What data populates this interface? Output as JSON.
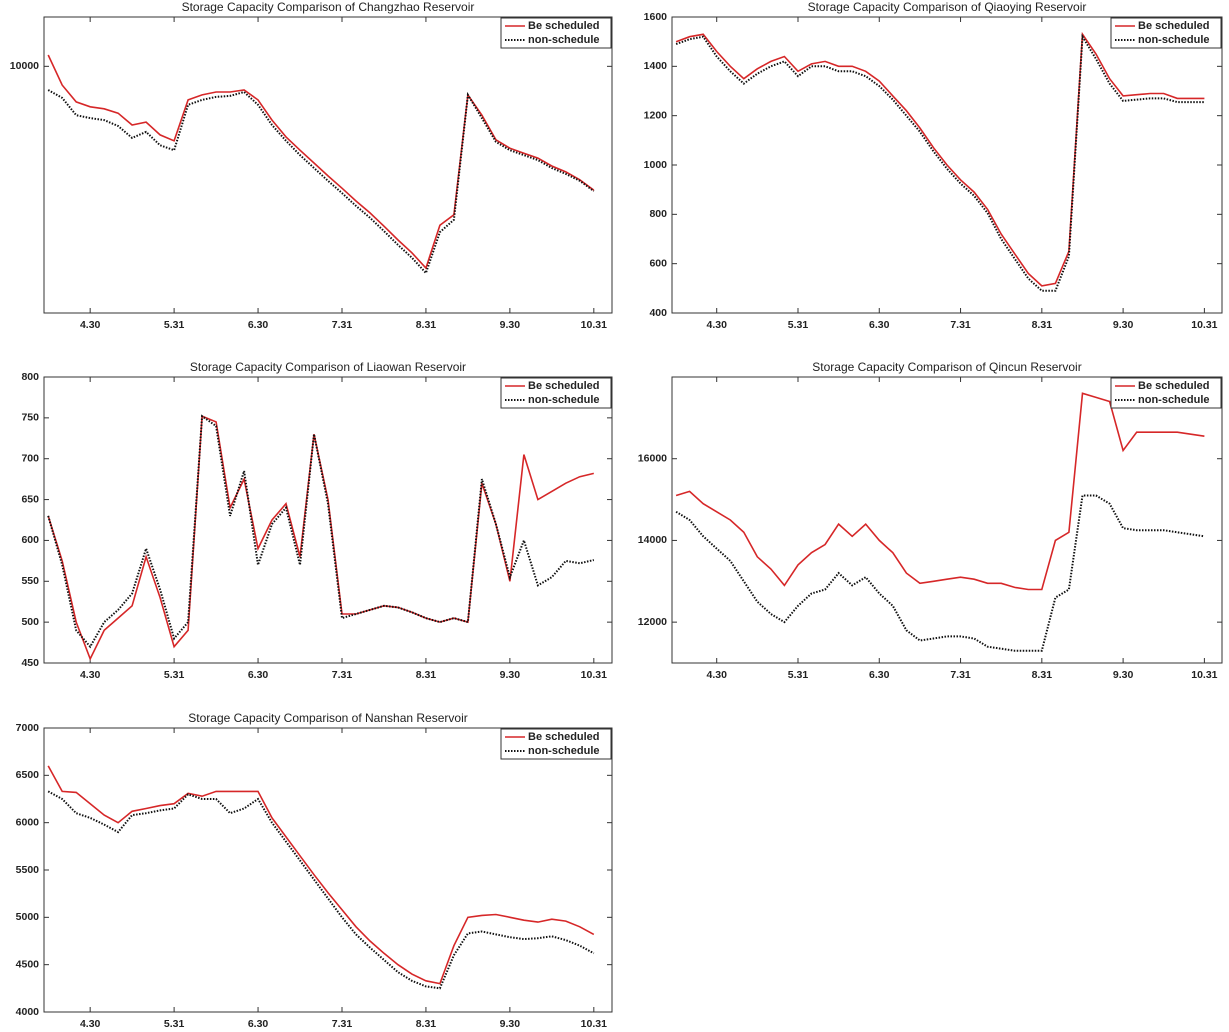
{
  "chart_data": [
    {
      "type": "line",
      "title": "Storage Capacity Comparison of Changzhao Reservoir",
      "categories": [
        null,
        null,
        null,
        "4.30",
        null,
        null,
        null,
        null,
        null,
        "5.31",
        null,
        null,
        null,
        null,
        null,
        "6.30",
        null,
        null,
        null,
        null,
        null,
        "7.31",
        null,
        null,
        null,
        null,
        null,
        "8.31",
        null,
        null,
        null,
        null,
        null,
        "9.30",
        null,
        null,
        null,
        null,
        null,
        "10.31"
      ],
      "ylim": [
        5000,
        11000
      ],
      "yticks": [
        10000
      ],
      "legend": "upper right",
      "series": [
        {
          "name": "Be scheduled",
          "color": "#d62728",
          "style": "solid",
          "values": [
            10230,
            9620,
            9280,
            9180,
            9140,
            9050,
            8810,
            8870,
            8610,
            8490,
            9320,
            9420,
            9480,
            9480,
            9520,
            9320,
            8910,
            8570,
            8300,
            8040,
            7780,
            7530,
            7270,
            7030,
            6760,
            6480,
            6220,
            5910,
            6780,
            6990,
            9420,
            9010,
            8510,
            8340,
            8240,
            8140,
            7980,
            7860,
            7700,
            7490
          ]
        },
        {
          "name": "non-schedule",
          "color": "#111111",
          "style": "dotted",
          "values": [
            9520,
            9360,
            9010,
            8950,
            8910,
            8790,
            8550,
            8670,
            8400,
            8300,
            9220,
            9320,
            9380,
            9400,
            9480,
            9220,
            8810,
            8490,
            8200,
            7940,
            7680,
            7430,
            7170,
            6930,
            6660,
            6380,
            6120,
            5810,
            6640,
            6890,
            9420,
            8950,
            8470,
            8300,
            8200,
            8100,
            7940,
            7820,
            7680,
            7470
          ]
        }
      ]
    },
    {
      "type": "line",
      "title": "Storage Capacity Comparison of Qiaoying Reservoir",
      "categories": [
        null,
        null,
        null,
        "4.30",
        null,
        null,
        null,
        null,
        null,
        "5.31",
        null,
        null,
        null,
        null,
        null,
        "6.30",
        null,
        null,
        null,
        null,
        null,
        "7.31",
        null,
        null,
        null,
        null,
        null,
        "8.31",
        null,
        null,
        null,
        null,
        null,
        "9.30",
        null,
        null,
        null,
        null,
        null,
        "10.31"
      ],
      "ylim": [
        400,
        1600
      ],
      "yticks": [
        400,
        600,
        800,
        1000,
        1200,
        1400,
        1600
      ],
      "legend": "upper right",
      "series": [
        {
          "name": "Be scheduled",
          "color": "#d62728",
          "style": "solid",
          "values": [
            1500,
            1520,
            1530,
            1460,
            1400,
            1350,
            1390,
            1420,
            1440,
            1380,
            1410,
            1420,
            1400,
            1400,
            1380,
            1340,
            1280,
            1220,
            1150,
            1070,
            1000,
            940,
            890,
            820,
            720,
            640,
            560,
            510,
            520,
            650,
            1530,
            1450,
            1350,
            1280,
            1285,
            1290,
            1290,
            1270,
            1270,
            1270
          ]
        },
        {
          "name": "non-schedule",
          "color": "#111111",
          "style": "dotted",
          "values": [
            1490,
            1510,
            1520,
            1440,
            1380,
            1330,
            1370,
            1400,
            1420,
            1360,
            1400,
            1400,
            1380,
            1380,
            1360,
            1320,
            1265,
            1200,
            1135,
            1055,
            985,
            925,
            875,
            805,
            700,
            620,
            540,
            490,
            490,
            630,
            1520,
            1430,
            1330,
            1260,
            1265,
            1270,
            1270,
            1255,
            1255,
            1255
          ]
        }
      ]
    },
    {
      "type": "line",
      "title": "Storage Capacity Comparison of Liaowan Reservoir",
      "categories": [
        null,
        null,
        null,
        "4.30",
        null,
        null,
        null,
        null,
        null,
        "5.31",
        null,
        null,
        null,
        null,
        null,
        "6.30",
        null,
        null,
        null,
        null,
        null,
        "7.31",
        null,
        null,
        null,
        null,
        null,
        "8.31",
        null,
        null,
        null,
        null,
        null,
        "9.30",
        null,
        null,
        null,
        null,
        null,
        "10.31"
      ],
      "ylim": [
        450,
        800
      ],
      "yticks": [
        450,
        500,
        550,
        600,
        650,
        700,
        750,
        800
      ],
      "legend": "upper right",
      "series": [
        {
          "name": "Be scheduled",
          "color": "#d62728",
          "style": "solid",
          "values": [
            630,
            575,
            500,
            455,
            490,
            505,
            520,
            580,
            530,
            470,
            490,
            752,
            745,
            640,
            675,
            590,
            625,
            645,
            580,
            730,
            650,
            510,
            510,
            515,
            520,
            518,
            512,
            505,
            500,
            505,
            500,
            670,
            620,
            550,
            705,
            650,
            660,
            670,
            678,
            682
          ]
        },
        {
          "name": "non-schedule",
          "color": "#111111",
          "style": "dotted",
          "values": [
            630,
            570,
            490,
            470,
            500,
            515,
            535,
            590,
            540,
            480,
            500,
            752,
            740,
            630,
            685,
            570,
            620,
            640,
            570,
            730,
            645,
            505,
            510,
            515,
            520,
            518,
            512,
            505,
            500,
            505,
            500,
            675,
            620,
            555,
            600,
            545,
            555,
            575,
            572,
            576
          ]
        }
      ]
    },
    {
      "type": "line",
      "title": "Storage Capacity Comparison of Qincun Reservoir",
      "categories": [
        null,
        null,
        null,
        "4.30",
        null,
        null,
        null,
        null,
        null,
        "5.31",
        null,
        null,
        null,
        null,
        null,
        "6.30",
        null,
        null,
        null,
        null,
        null,
        "7.31",
        null,
        null,
        null,
        null,
        null,
        "8.31",
        null,
        null,
        null,
        null,
        null,
        "9.30",
        null,
        null,
        null,
        null,
        null,
        "10.31"
      ],
      "ylim": [
        11000,
        18000
      ],
      "yticks": [
        12000,
        14000,
        16000
      ],
      "legend": "upper right",
      "series": [
        {
          "name": "Be scheduled",
          "color": "#d62728",
          "style": "solid",
          "values": [
            15100,
            15200,
            14900,
            14700,
            14500,
            14200,
            13600,
            13300,
            12900,
            13400,
            13700,
            13900,
            14400,
            14100,
            14400,
            14000,
            13700,
            13200,
            12950,
            13000,
            13050,
            13100,
            13050,
            12950,
            12950,
            12850,
            12800,
            12800,
            14000,
            14200,
            17600,
            17500,
            17400,
            16200,
            16650,
            16650,
            16650,
            16650,
            16600,
            16550
          ]
        },
        {
          "name": "non-schedule",
          "color": "#111111",
          "style": "dotted",
          "values": [
            14700,
            14500,
            14100,
            13800,
            13500,
            13000,
            12500,
            12200,
            12000,
            12400,
            12700,
            12800,
            13200,
            12900,
            13100,
            12700,
            12400,
            11800,
            11550,
            11600,
            11650,
            11650,
            11600,
            11400,
            11350,
            11300,
            11300,
            11300,
            12600,
            12800,
            15100,
            15100,
            14900,
            14300,
            14250,
            14250,
            14250,
            14200,
            14150,
            14100
          ]
        }
      ]
    },
    {
      "type": "line",
      "title": "Storage Capacity Comparison of Nanshan Reservoir",
      "categories": [
        null,
        null,
        null,
        "4.30",
        null,
        null,
        null,
        null,
        null,
        "5.31",
        null,
        null,
        null,
        null,
        null,
        "6.30",
        null,
        null,
        null,
        null,
        null,
        "7.31",
        null,
        null,
        null,
        null,
        null,
        "8.31",
        null,
        null,
        null,
        null,
        null,
        "9.30",
        null,
        null,
        null,
        null,
        null,
        "10.31"
      ],
      "ylim": [
        4000,
        7000
      ],
      "yticks": [
        4000,
        4500,
        5000,
        5500,
        6000,
        6500,
        7000
      ],
      "legend": "upper right",
      "series": [
        {
          "name": "Be scheduled",
          "color": "#d62728",
          "style": "solid",
          "values": [
            6600,
            6330,
            6320,
            6200,
            6080,
            6000,
            6120,
            6150,
            6180,
            6200,
            6310,
            6280,
            6330,
            6330,
            6330,
            6330,
            6050,
            5850,
            5650,
            5450,
            5260,
            5080,
            4900,
            4750,
            4620,
            4500,
            4400,
            4330,
            4300,
            4700,
            5000,
            5020,
            5030,
            5000,
            4970,
            4950,
            4980,
            4960,
            4900,
            4820
          ]
        },
        {
          "name": "non-schedule",
          "color": "#111111",
          "style": "dotted",
          "values": [
            6330,
            6250,
            6100,
            6050,
            5980,
            5900,
            6080,
            6100,
            6130,
            6150,
            6300,
            6250,
            6250,
            6100,
            6150,
            6250,
            6000,
            5800,
            5600,
            5400,
            5200,
            5000,
            4820,
            4680,
            4550,
            4420,
            4330,
            4270,
            4250,
            4600,
            4830,
            4850,
            4820,
            4790,
            4770,
            4780,
            4800,
            4760,
            4700,
            4620
          ]
        }
      ]
    }
  ]
}
